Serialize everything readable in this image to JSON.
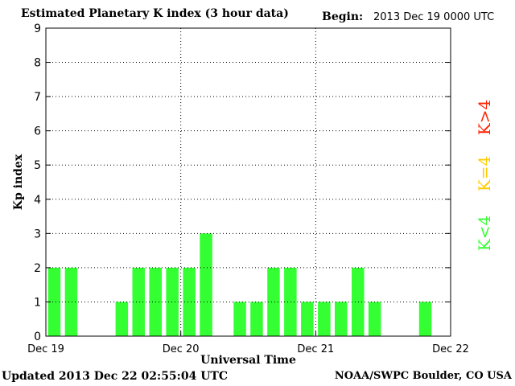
{
  "header": {
    "title": "Estimated Planetary K index (3 hour data)",
    "begin_label": "Begin:",
    "begin_value": "2013 Dec 19 0000 UTC"
  },
  "footer": {
    "updated": "Updated 2013 Dec 22 02:55:04 UTC",
    "source": "NOAA/SWPC Boulder, CO USA"
  },
  "legend": [
    {
      "label": "K<4",
      "color": "#33ff33"
    },
    {
      "label": "K=4",
      "color": "#ffcc00"
    },
    {
      "label": "K>4",
      "color": "#ff2200"
    }
  ],
  "colors": {
    "bar_low": "#33ff33",
    "bar_eq": "#ffcc00",
    "bar_high": "#ff2200"
  },
  "chart_data": {
    "type": "bar",
    "title": "Estimated Planetary K index (3 hour data)",
    "xlabel": "Universal Time",
    "ylabel": "Kp index",
    "ylim": [
      0,
      9
    ],
    "yticks": [
      0,
      1,
      2,
      3,
      4,
      5,
      6,
      7,
      8,
      9
    ],
    "xlim": [
      0,
      72
    ],
    "xtick_positions_hours": [
      0,
      24,
      48,
      72
    ],
    "xtick_labels": [
      "Dec 19",
      "Dec 20",
      "Dec 21",
      "Dec 22"
    ],
    "grid": true,
    "bar_interval_hours": 3,
    "values": [
      2,
      2,
      null,
      null,
      1,
      2,
      2,
      2,
      2,
      3,
      null,
      1,
      1,
      2,
      2,
      1,
      1,
      1,
      2,
      1,
      null,
      null,
      1,
      null
    ]
  }
}
